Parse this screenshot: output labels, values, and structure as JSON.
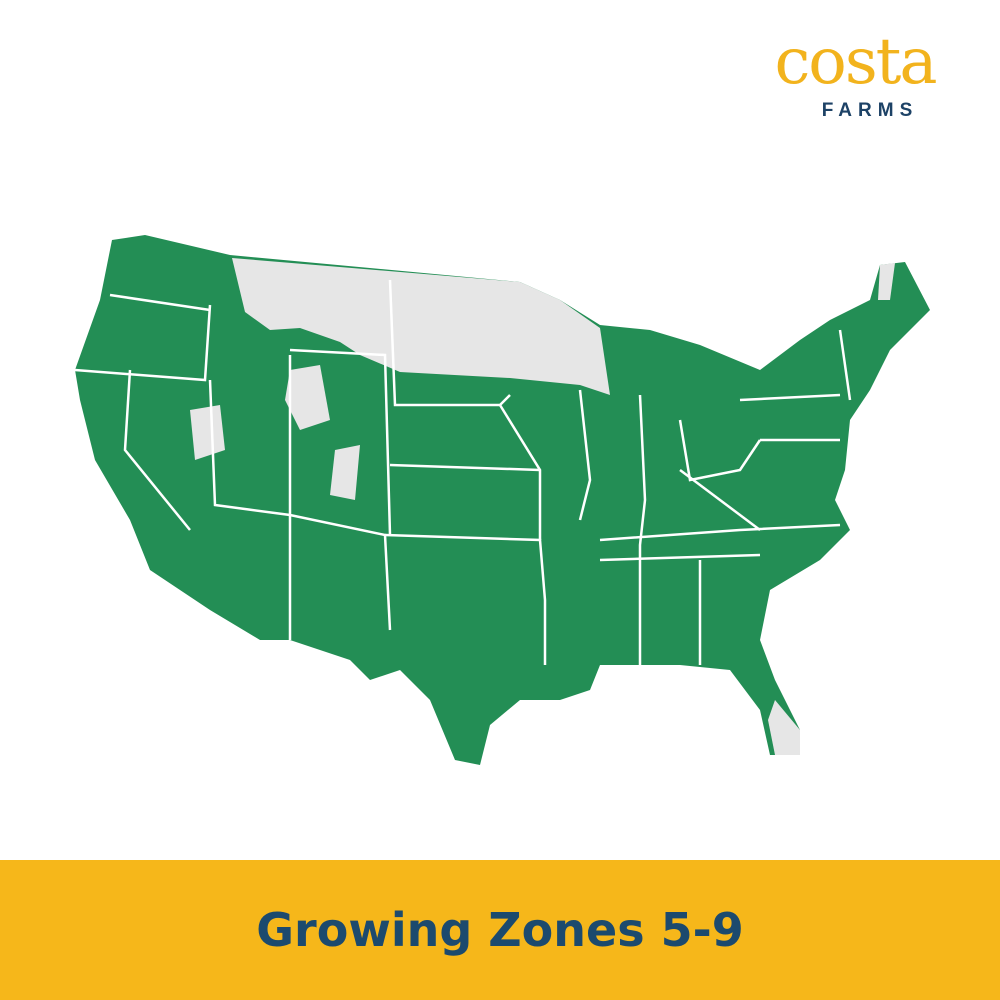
{
  "brand": {
    "name": "costa",
    "sub": "FARMS",
    "color_primary": "#f2b31d",
    "color_secondary": "#1d4266"
  },
  "map": {
    "region": "Contiguous United States",
    "highlight_color": "#238e55",
    "excluded_color": "#e6e6e6",
    "border_color": "#ffffff"
  },
  "banner": {
    "title": "Growing Zones 5-9",
    "background": "#f6b71a",
    "text_color": "#1c4a6e"
  }
}
